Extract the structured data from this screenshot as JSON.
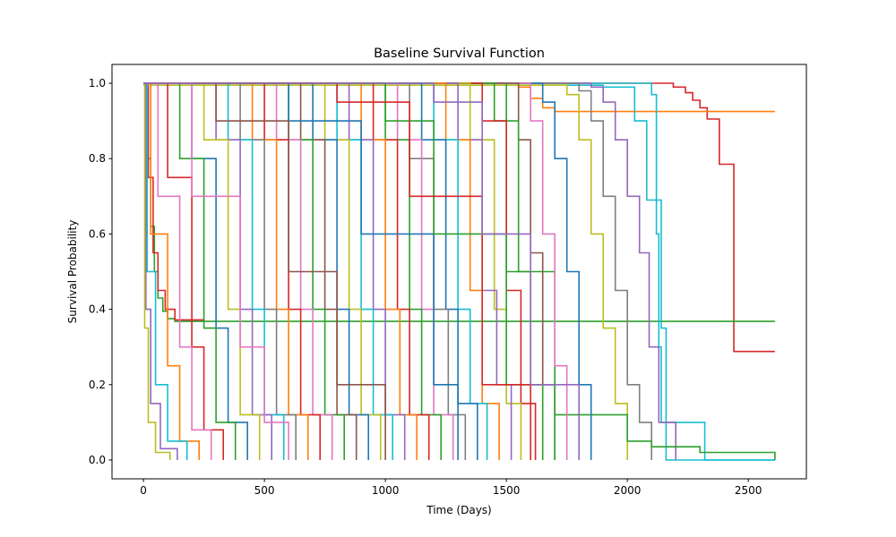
{
  "chart_data": {
    "type": "line",
    "title": "Baseline Survival Function",
    "xlabel": "Time (Days)",
    "ylabel": "Survival Probability",
    "xlim": [
      -130,
      2740
    ],
    "ylim": [
      -0.05,
      1.05
    ],
    "x_ticks": [
      0,
      500,
      1000,
      1500,
      2000,
      2500
    ],
    "y_ticks": [
      0.0,
      0.2,
      0.4,
      0.6,
      0.8,
      1.0
    ],
    "y_tick_labels": [
      "0.0",
      "0.2",
      "0.4",
      "0.6",
      "0.8",
      "1.0"
    ],
    "grid": false,
    "legend": "none",
    "palette": [
      "#1f77b4",
      "#ff7f0e",
      "#2ca02c",
      "#d62728",
      "#9467bd",
      "#8c564b",
      "#e377c2",
      "#7f7f7f",
      "#bcbd22",
      "#17becf"
    ],
    "series": [
      {
        "color": "#d62728",
        "x": [
          0,
          2100,
          2190,
          2240,
          2270,
          2300,
          2330,
          2340,
          2380,
          2430,
          2440,
          2610
        ],
        "y": [
          1.0,
          1.0,
          0.99,
          0.975,
          0.955,
          0.935,
          0.905,
          0.905,
          0.785,
          0.785,
          0.288,
          0.288
        ]
      },
      {
        "color": "#ff7f0e",
        "x": [
          0,
          1550,
          1600,
          1650,
          1700,
          2610
        ],
        "y": [
          1.0,
          0.99,
          0.96,
          0.935,
          0.925,
          0.925
        ]
      },
      {
        "color": "#2ca02c",
        "x": [
          0,
          15,
          30,
          45,
          60,
          80,
          100,
          130,
          2610
        ],
        "y": [
          1.0,
          0.8,
          0.62,
          0.5,
          0.43,
          0.395,
          0.375,
          0.368,
          0.368
        ]
      },
      {
        "color": "#d62728",
        "x": [
          0,
          20,
          40,
          60,
          90,
          130,
          250
        ],
        "y": [
          1.0,
          0.75,
          0.55,
          0.45,
          0.4,
          0.372,
          0.368
        ]
      },
      {
        "color": "#17becf",
        "x": [
          0,
          2060,
          2100,
          2120,
          2130,
          2140,
          2150,
          2300,
          2320,
          2610
        ],
        "y": [
          1.0,
          1.0,
          0.97,
          0.6,
          0.3,
          0.1,
          0.1,
          0.1,
          0.0,
          0.0
        ]
      },
      {
        "color": "#17becf",
        "x": [
          0,
          1900,
          2000,
          2030,
          2060,
          2080,
          2110,
          2140,
          2160,
          2610
        ],
        "y": [
          0.995,
          0.99,
          0.99,
          0.9,
          0.9,
          0.69,
          0.69,
          0.35,
          0.0,
          0.0
        ]
      },
      {
        "color": "#9467bd",
        "x": [
          0,
          1850,
          1900,
          1950,
          2000,
          2050,
          2090,
          2130,
          2200
        ],
        "y": [
          1.0,
          0.99,
          0.95,
          0.85,
          0.7,
          0.55,
          0.3,
          0.1,
          0.0
        ]
      },
      {
        "color": "#7f7f7f",
        "x": [
          0,
          1800,
          1850,
          1900,
          1950,
          2000,
          2050,
          2100
        ],
        "y": [
          1.0,
          0.98,
          0.9,
          0.7,
          0.45,
          0.2,
          0.1,
          0.0
        ]
      },
      {
        "color": "#bcbd22",
        "x": [
          0,
          1750,
          1800,
          1850,
          1900,
          1950,
          2000
        ],
        "y": [
          0.995,
          0.97,
          0.85,
          0.6,
          0.35,
          0.15,
          0.0
        ]
      },
      {
        "color": "#2ca02c",
        "x": [
          0,
          1500,
          1700,
          2000,
          2100,
          2300,
          2610
        ],
        "y": [
          1.0,
          0.5,
          0.12,
          0.05,
          0.035,
          0.02,
          0.0
        ]
      },
      {
        "color": "#1f77b4",
        "x": [
          0,
          1650,
          1700,
          1750,
          1800,
          1850
        ],
        "y": [
          1.0,
          0.95,
          0.8,
          0.5,
          0.2,
          0.0
        ]
      },
      {
        "color": "#e377c2",
        "x": [
          0,
          1600,
          1650,
          1700,
          1750
        ],
        "y": [
          1.0,
          0.9,
          0.6,
          0.25,
          0.0
        ]
      },
      {
        "color": "#8c564b",
        "x": [
          0,
          1550,
          1600,
          1650,
          1700
        ],
        "y": [
          1.0,
          0.85,
          0.55,
          0.2,
          0.0
        ]
      },
      {
        "color": "#2ca02c",
        "x": [
          0,
          1450,
          1550,
          1600,
          1650
        ],
        "y": [
          1.0,
          0.9,
          0.5,
          0.2,
          0.0
        ]
      },
      {
        "color": "#d62728",
        "x": [
          0,
          1400,
          1500,
          1560,
          1620
        ],
        "y": [
          1.0,
          0.9,
          0.45,
          0.15,
          0.0
        ]
      },
      {
        "color": "#bcbd22",
        "x": [
          0,
          1350,
          1450,
          1500,
          1560
        ],
        "y": [
          1.0,
          0.85,
          0.4,
          0.15,
          0.0
        ]
      },
      {
        "color": "#9467bd",
        "x": [
          0,
          1300,
          1400,
          1460,
          1520
        ],
        "y": [
          1.0,
          0.85,
          0.45,
          0.2,
          0.0
        ]
      },
      {
        "color": "#ff7f0e",
        "x": [
          0,
          1250,
          1350,
          1400,
          1470
        ],
        "y": [
          1.0,
          0.85,
          0.45,
          0.15,
          0.0
        ]
      },
      {
        "color": "#17becf",
        "x": [
          0,
          1200,
          1300,
          1350,
          1420
        ],
        "y": [
          1.0,
          0.85,
          0.4,
          0.15,
          0.0
        ]
      },
      {
        "color": "#1f77b4",
        "x": [
          0,
          1150,
          1250,
          1300,
          1380
        ],
        "y": [
          1.0,
          0.85,
          0.4,
          0.15,
          0.0
        ]
      },
      {
        "color": "#7f7f7f",
        "x": [
          0,
          1100,
          1200,
          1260,
          1330
        ],
        "y": [
          1.0,
          0.8,
          0.4,
          0.12,
          0.0
        ]
      },
      {
        "color": "#e377c2",
        "x": [
          0,
          1050,
          1150,
          1200,
          1280
        ],
        "y": [
          1.0,
          0.85,
          0.4,
          0.12,
          0.0
        ]
      },
      {
        "color": "#2ca02c",
        "x": [
          0,
          1000,
          1100,
          1150,
          1230
        ],
        "y": [
          1.0,
          0.85,
          0.4,
          0.12,
          0.0
        ]
      },
      {
        "color": "#d62728",
        "x": [
          0,
          950,
          1050,
          1100,
          1180
        ],
        "y": [
          1.0,
          0.85,
          0.4,
          0.12,
          0.0
        ]
      },
      {
        "color": "#ff7f0e",
        "x": [
          0,
          900,
          1000,
          1060,
          1130
        ],
        "y": [
          1.0,
          0.85,
          0.4,
          0.12,
          0.0
        ]
      },
      {
        "color": "#9467bd",
        "x": [
          0,
          850,
          950,
          1000,
          1080
        ],
        "y": [
          1.0,
          0.85,
          0.4,
          0.12,
          0.0
        ]
      },
      {
        "color": "#17becf",
        "x": [
          0,
          800,
          900,
          950,
          1030
        ],
        "y": [
          1.0,
          0.85,
          0.4,
          0.12,
          0.0
        ]
      },
      {
        "color": "#bcbd22",
        "x": [
          0,
          750,
          850,
          900,
          980
        ],
        "y": [
          1.0,
          0.85,
          0.4,
          0.12,
          0.0
        ]
      },
      {
        "color": "#1f77b4",
        "x": [
          0,
          700,
          800,
          850,
          930
        ],
        "y": [
          1.0,
          0.85,
          0.4,
          0.12,
          0.0
        ]
      },
      {
        "color": "#8c564b",
        "x": [
          0,
          650,
          750,
          800,
          880
        ],
        "y": [
          1.0,
          0.85,
          0.4,
          0.12,
          0.0
        ]
      },
      {
        "color": "#2ca02c",
        "x": [
          0,
          600,
          700,
          750,
          830
        ],
        "y": [
          1.0,
          0.85,
          0.4,
          0.12,
          0.0
        ]
      },
      {
        "color": "#e377c2",
        "x": [
          0,
          550,
          650,
          700,
          780
        ],
        "y": [
          1.0,
          0.85,
          0.4,
          0.12,
          0.0
        ]
      },
      {
        "color": "#d62728",
        "x": [
          0,
          500,
          600,
          650,
          730
        ],
        "y": [
          1.0,
          0.85,
          0.4,
          0.12,
          0.0
        ]
      },
      {
        "color": "#ff7f0e",
        "x": [
          0,
          450,
          550,
          600,
          680
        ],
        "y": [
          1.0,
          0.85,
          0.4,
          0.12,
          0.0
        ]
      },
      {
        "color": "#7f7f7f",
        "x": [
          0,
          400,
          500,
          550,
          630
        ],
        "y": [
          1.0,
          0.85,
          0.4,
          0.12,
          0.0
        ]
      },
      {
        "color": "#17becf",
        "x": [
          0,
          350,
          450,
          500,
          580
        ],
        "y": [
          1.0,
          0.85,
          0.4,
          0.12,
          0.0
        ]
      },
      {
        "color": "#9467bd",
        "x": [
          0,
          300,
          400,
          450,
          530
        ],
        "y": [
          1.0,
          0.85,
          0.4,
          0.12,
          0.0
        ]
      },
      {
        "color": "#bcbd22",
        "x": [
          0,
          250,
          350,
          400,
          480
        ],
        "y": [
          1.0,
          0.85,
          0.4,
          0.12,
          0.0
        ]
      },
      {
        "color": "#1f77b4",
        "x": [
          0,
          200,
          300,
          350,
          430
        ],
        "y": [
          1.0,
          0.8,
          0.35,
          0.1,
          0.0
        ]
      },
      {
        "color": "#2ca02c",
        "x": [
          0,
          150,
          250,
          300,
          380
        ],
        "y": [
          1.0,
          0.8,
          0.35,
          0.1,
          0.0
        ]
      },
      {
        "color": "#d62728",
        "x": [
          0,
          100,
          200,
          250,
          330
        ],
        "y": [
          1.0,
          0.75,
          0.3,
          0.08,
          0.0
        ]
      },
      {
        "color": "#e377c2",
        "x": [
          0,
          60,
          150,
          200,
          280
        ],
        "y": [
          1.0,
          0.7,
          0.3,
          0.08,
          0.0
        ]
      },
      {
        "color": "#ff7f0e",
        "x": [
          0,
          30,
          100,
          150,
          230
        ],
        "y": [
          1.0,
          0.6,
          0.25,
          0.05,
          0.0
        ]
      },
      {
        "color": "#17becf",
        "x": [
          0,
          15,
          50,
          100,
          180
        ],
        "y": [
          1.0,
          0.5,
          0.2,
          0.05,
          0.0
        ]
      },
      {
        "color": "#9467bd",
        "x": [
          0,
          10,
          30,
          70,
          140
        ],
        "y": [
          1.0,
          0.4,
          0.15,
          0.03,
          0.0
        ]
      },
      {
        "color": "#bcbd22",
        "x": [
          0,
          5,
          20,
          50,
          110
        ],
        "y": [
          1.0,
          0.35,
          0.1,
          0.02,
          0.0
        ]
      },
      {
        "color": "#1f77b4",
        "x": [
          0,
          600,
          900,
          1200,
          1300
        ],
        "y": [
          1.0,
          0.9,
          0.6,
          0.2,
          0.0
        ]
      },
      {
        "color": "#2ca02c",
        "x": [
          0,
          1000,
          1200,
          1500,
          1700
        ],
        "y": [
          1.0,
          0.9,
          0.6,
          0.2,
          0.0
        ]
      },
      {
        "color": "#8c564b",
        "x": [
          0,
          300,
          600,
          800,
          1000
        ],
        "y": [
          1.0,
          0.9,
          0.5,
          0.2,
          0.0
        ]
      },
      {
        "color": "#d62728",
        "x": [
          0,
          800,
          1100,
          1400,
          1600
        ],
        "y": [
          1.0,
          0.95,
          0.7,
          0.2,
          0.0
        ]
      },
      {
        "color": "#e377c2",
        "x": [
          0,
          200,
          400,
          500,
          600
        ],
        "y": [
          1.0,
          0.7,
          0.3,
          0.1,
          0.0
        ]
      },
      {
        "color": "#9467bd",
        "x": [
          0,
          1200,
          1400,
          1600,
          1800
        ],
        "y": [
          1.0,
          0.95,
          0.6,
          0.2,
          0.0
        ]
      }
    ]
  }
}
